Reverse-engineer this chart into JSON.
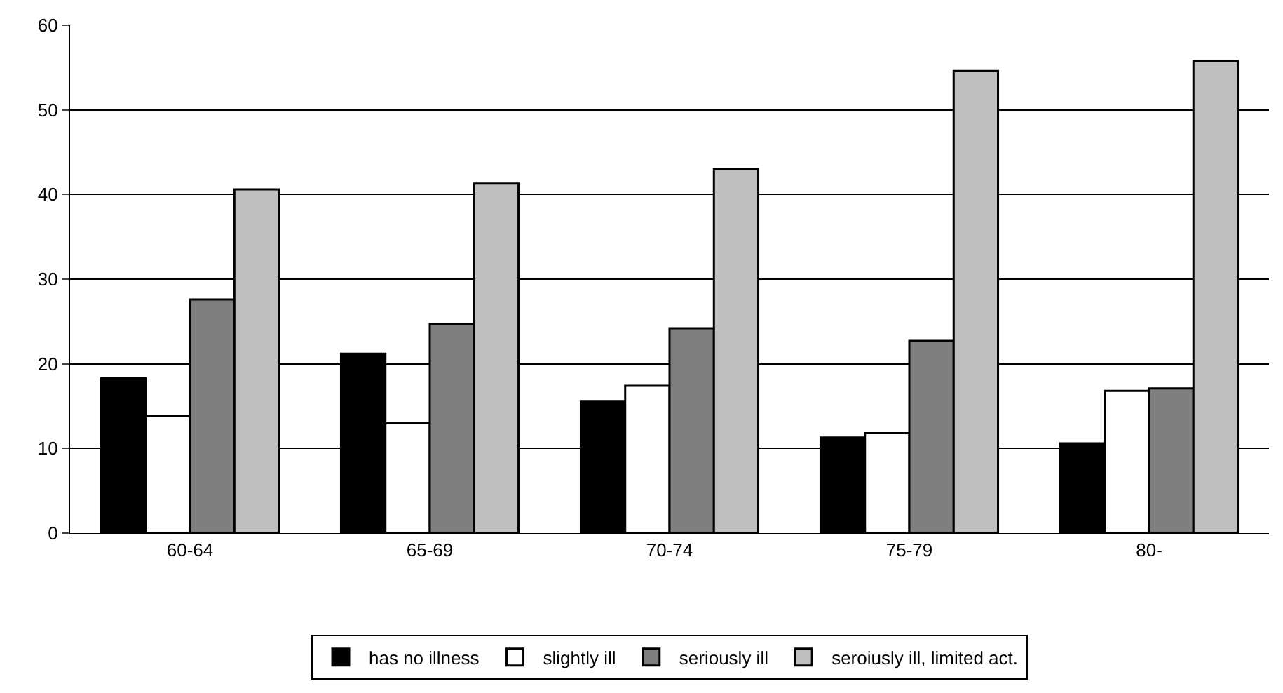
{
  "chart_data": {
    "type": "bar",
    "categories": [
      "60-64",
      "65-69",
      "70-74",
      "75-79",
      "80-"
    ],
    "series": [
      {
        "name": "has no illness",
        "color": "#000000",
        "values": [
          18.3,
          21.2,
          15.6,
          11.3,
          10.6
        ]
      },
      {
        "name": "slightly ill",
        "color": "#ffffff",
        "values": [
          13.8,
          13.0,
          17.4,
          11.8,
          16.8
        ]
      },
      {
        "name": "seriously ill",
        "color": "#7f7f7f",
        "values": [
          27.6,
          24.7,
          24.2,
          22.7,
          17.1
        ]
      },
      {
        "name": "seroiusly ill, limited act.",
        "color": "#bfbfbf",
        "values": [
          40.6,
          41.3,
          43.0,
          54.6,
          55.8
        ]
      }
    ],
    "ylim": [
      0,
      60
    ],
    "yticks": [
      0,
      10,
      20,
      30,
      40,
      50,
      60
    ],
    "grid": "y",
    "legend": "bottom"
  }
}
